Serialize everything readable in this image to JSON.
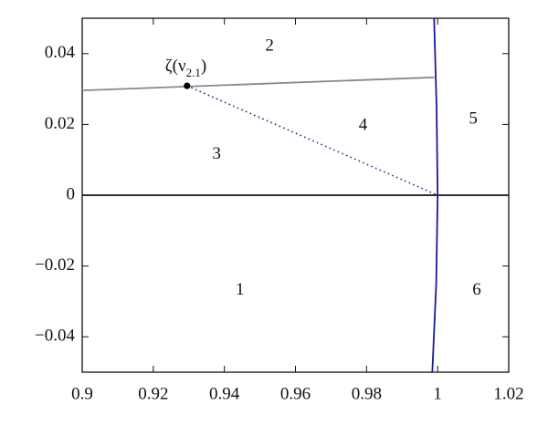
{
  "chart_data": {
    "type": "line",
    "xlim": [
      0.9,
      1.02
    ],
    "ylim": [
      -0.05,
      0.05
    ],
    "xticks": [
      0.9,
      0.92,
      0.94,
      0.96,
      0.98,
      1,
      1.02
    ],
    "yticks": [
      {
        "value": -0.04,
        "label": "−0.04"
      },
      {
        "value": -0.02,
        "label": "−0.02"
      },
      0,
      0.02,
      0.04
    ],
    "series": [
      {
        "color": "#888888",
        "style": "solid",
        "x": [
          0.9,
          0.999
        ],
        "y": [
          0.0296,
          0.0333
        ]
      },
      {
        "color": "#111111",
        "style": "solid",
        "x": [
          0.9,
          1.02
        ],
        "y": [
          0,
          0
        ]
      },
      {
        "color": "#1a237e",
        "style": "dotted",
        "x": [
          0.9295,
          1.0
        ],
        "y": [
          0.0309,
          0
        ]
      },
      {
        "color": "#1a1a99",
        "style": "solid",
        "x": [
          0.999,
          0.9997,
          1.0,
          0.9996,
          0.9985
        ],
        "y": [
          0.05,
          0.025,
          0,
          -0.025,
          -0.05
        ]
      }
    ],
    "points": [
      {
        "x": 0.9295,
        "y": 0.0309,
        "color": "#000000"
      }
    ],
    "annotation": [
      "ζ(ν",
      "2.1",
      ")"
    ],
    "regions": [
      {
        "label": "1",
        "x": 0.9444,
        "y": -0.027
      },
      {
        "label": "2",
        "x": 0.9527,
        "y": 0.042
      },
      {
        "label": "3",
        "x": 0.9378,
        "y": 0.0114
      },
      {
        "label": "4",
        "x": 0.979,
        "y": 0.0195
      },
      {
        "label": "5",
        "x": 1.01,
        "y": 0.0213
      },
      {
        "label": "6",
        "x": 1.011,
        "y": -0.027
      }
    ]
  }
}
